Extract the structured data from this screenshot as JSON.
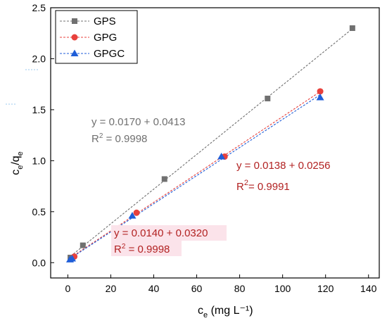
{
  "chart_data": {
    "type": "scatter",
    "title": "",
    "xlabel": "c_e (mg L⁻¹)",
    "ylabel": "c_e/q_e",
    "xlim": [
      -8,
      145
    ],
    "ylim": [
      -0.15,
      2.5
    ],
    "xticks": [
      0,
      20,
      40,
      60,
      80,
      100,
      120,
      140
    ],
    "yticks": [
      0.0,
      0.5,
      1.0,
      1.5,
      2.0,
      2.5
    ],
    "grid": false,
    "legend_position": "top-left",
    "series": [
      {
        "name": "GPS",
        "color": "#707070",
        "marker": "square",
        "x": [
          1.2,
          7.0,
          45.0,
          93.0,
          132.5
        ],
        "y": [
          0.05,
          0.17,
          0.82,
          1.61,
          2.3
        ],
        "fit": {
          "x": [
            0,
            132.5
          ],
          "y": [
            0.0413,
            2.294
          ]
        }
      },
      {
        "name": "GPG",
        "color": "#e8413c",
        "marker": "circle",
        "x": [
          3.0,
          32.0,
          73.0,
          117.5
        ],
        "y": [
          0.06,
          0.49,
          1.04,
          1.68
        ],
        "fit": {
          "x": [
            0,
            117.5
          ],
          "y": [
            0.032,
            1.677
          ]
        }
      },
      {
        "name": "GPGC",
        "color": "#1f5ed8",
        "marker": "triangle",
        "x": [
          1.0,
          2.0,
          30.0,
          71.5,
          117.5
        ],
        "y": [
          0.03,
          0.04,
          0.46,
          1.04,
          1.62
        ],
        "fit": {
          "x": [
            0,
            117.5
          ],
          "y": [
            0.0256,
            1.647
          ]
        }
      }
    ],
    "annotations": [
      {
        "eq": "y = 0.0170 + 0.0413",
        "r2_base": "R",
        "r2_sup": "2",
        "r2_value": " = 0.9998",
        "color": "#707070"
      },
      {
        "eq": "y = 0.0138 + 0.0256",
        "r2_base": "R",
        "r2_sup": "2",
        "r2_value": "= 0.9991",
        "color": "#4a6fe0"
      },
      {
        "eq": "y = 0.0140 + 0.0320",
        "r2_base": "R",
        "r2_sup": "2",
        "r2_value": " = 0.9998",
        "color": "#b22222",
        "highlight": "#fbe3ea"
      }
    ],
    "axis_titles": {
      "x_base": "c",
      "x_sub": "e",
      "x_rest": " (mg L⁻¹)",
      "y_base1": "c",
      "y_sub1": "e",
      "y_slash": "/q",
      "y_sub2": "e"
    }
  }
}
